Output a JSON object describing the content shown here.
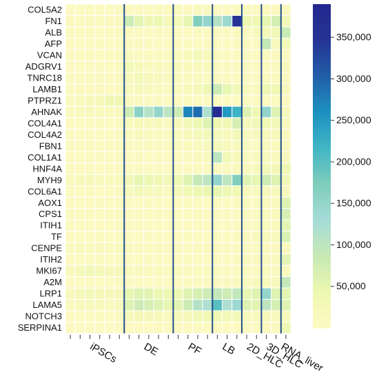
{
  "chart_data": {
    "type": "heatmap",
    "rows": [
      "COL5A2",
      "FN1",
      "ALB",
      "AFP",
      "VCAN",
      "ADGRV1",
      "TNRC18",
      "LAMB1",
      "PTPRZ1",
      "AHNAK",
      "COL4A1",
      "COL4A2",
      "FBN1",
      "COL1A1",
      "HNF4A",
      "MYH9",
      "COL6A1",
      "AOX1",
      "CPS1",
      "ITIH1",
      "TF",
      "CENPE",
      "ITIH2",
      "MKI67",
      "A2M",
      "LRP1",
      "LAMA5",
      "NOTCH3",
      "SERPINA1"
    ],
    "groups": [
      {
        "label": "iPSCs",
        "columns": 6
      },
      {
        "label": "DE",
        "columns": 5
      },
      {
        "label": "PF",
        "columns": 4
      },
      {
        "label": "LB",
        "columns": 3
      },
      {
        "label": "2D_HLC",
        "columns": 2
      },
      {
        "label": "3D_HLC",
        "columns": 2
      },
      {
        "label": "RNA_liver",
        "columns": 1
      }
    ],
    "values": [
      [
        3000,
        3000,
        4000,
        3000,
        3000,
        3000,
        5000,
        8000,
        6000,
        5000,
        4000,
        9000,
        7000,
        8000,
        10000,
        6000,
        5000,
        9000,
        4000,
        3000,
        6000,
        7000,
        14000
      ],
      [
        8000,
        9000,
        10000,
        9000,
        8000,
        9000,
        80000,
        55000,
        40000,
        45000,
        25000,
        25000,
        50000,
        170000,
        150000,
        110000,
        140000,
        350000,
        45000,
        35000,
        50000,
        70000,
        30000
      ],
      [
        5000,
        5000,
        6000,
        5000,
        5000,
        5000,
        9000,
        8000,
        7000,
        8000,
        6000,
        7000,
        6000,
        7000,
        8000,
        8000,
        9000,
        12000,
        10000,
        20000,
        25000,
        30000,
        85000
      ],
      [
        5000,
        5000,
        5000,
        5000,
        5000,
        5000,
        8000,
        7000,
        6000,
        7000,
        6000,
        7000,
        6000,
        6000,
        7000,
        7000,
        6000,
        8000,
        8000,
        10000,
        90000,
        15000,
        30000
      ],
      [
        4000,
        5000,
        5000,
        4000,
        4000,
        5000,
        12000,
        9000,
        8000,
        9000,
        7000,
        15000,
        20000,
        30000,
        20000,
        12000,
        10000,
        8000,
        5000,
        5000,
        6000,
        7000,
        10000
      ],
      [
        6000,
        5000,
        6000,
        5000,
        4000,
        5000,
        30000,
        20000,
        15000,
        12000,
        10000,
        15000,
        12000,
        14000,
        12000,
        10000,
        8000,
        9000,
        7000,
        6000,
        8000,
        9000,
        12000
      ],
      [
        8000,
        8000,
        9000,
        8000,
        8000,
        9000,
        20000,
        30000,
        25000,
        15000,
        12000,
        12000,
        10000,
        11000,
        9000,
        9000,
        8000,
        9000,
        8000,
        8000,
        9000,
        10000,
        12000
      ],
      [
        6000,
        7000,
        8000,
        7000,
        6000,
        7000,
        15000,
        22000,
        18000,
        15000,
        12000,
        15000,
        18000,
        25000,
        40000,
        80000,
        50000,
        30000,
        20000,
        15000,
        40000,
        35000,
        20000
      ],
      [
        10000,
        15000,
        20000,
        25000,
        40000,
        35000,
        10000,
        8000,
        7000,
        8000,
        6000,
        6000,
        5000,
        6000,
        7000,
        6000,
        5000,
        6000,
        5000,
        5000,
        6000,
        6000,
        10000
      ],
      [
        12000,
        15000,
        18000,
        15000,
        14000,
        15000,
        80000,
        160000,
        110000,
        150000,
        100000,
        80000,
        270000,
        290000,
        120000,
        380000,
        250000,
        220000,
        60000,
        40000,
        150000,
        60000,
        25000
      ],
      [
        5000,
        5000,
        6000,
        5000,
        5000,
        6000,
        15000,
        25000,
        20000,
        18000,
        12000,
        18000,
        30000,
        45000,
        60000,
        40000,
        35000,
        70000,
        25000,
        30000,
        35000,
        30000,
        20000
      ],
      [
        5000,
        5000,
        6000,
        5000,
        5000,
        5000,
        12000,
        18000,
        15000,
        12000,
        10000,
        12000,
        20000,
        25000,
        30000,
        25000,
        20000,
        30000,
        15000,
        18000,
        20000,
        18000,
        15000
      ],
      [
        5000,
        5000,
        5000,
        5000,
        5000,
        5000,
        8000,
        10000,
        9000,
        8000,
        7000,
        8000,
        12000,
        15000,
        20000,
        25000,
        20000,
        15000,
        10000,
        10000,
        12000,
        11000,
        15000
      ],
      [
        5000,
        5000,
        5000,
        5000,
        5000,
        5000,
        6000,
        7000,
        6000,
        6000,
        5000,
        7000,
        9000,
        12000,
        15000,
        100000,
        30000,
        25000,
        10000,
        12000,
        15000,
        13000,
        12000
      ],
      [
        4000,
        4000,
        4000,
        4000,
        4000,
        4000,
        6000,
        7000,
        6000,
        6000,
        5000,
        6000,
        6000,
        7000,
        8000,
        9000,
        10000,
        12000,
        15000,
        20000,
        30000,
        28000,
        40000
      ],
      [
        15000,
        18000,
        20000,
        17000,
        15000,
        16000,
        30000,
        50000,
        45000,
        35000,
        30000,
        40000,
        60000,
        90000,
        100000,
        150000,
        100000,
        170000,
        60000,
        50000,
        80000,
        60000,
        30000
      ],
      [
        6000,
        6000,
        7000,
        6000,
        6000,
        6000,
        20000,
        30000,
        25000,
        20000,
        15000,
        25000,
        35000,
        40000,
        45000,
        50000,
        40000,
        35000,
        20000,
        15000,
        18000,
        16000,
        20000
      ],
      [
        4000,
        4000,
        4000,
        4000,
        4000,
        4000,
        6000,
        6000,
        5000,
        6000,
        5000,
        6000,
        6000,
        6000,
        6000,
        6000,
        6000,
        7000,
        8000,
        10000,
        12000,
        14000,
        60000
      ],
      [
        4000,
        4000,
        4000,
        4000,
        4000,
        4000,
        5000,
        6000,
        5000,
        5000,
        5000,
        6000,
        6000,
        6000,
        6000,
        7000,
        7000,
        8000,
        8000,
        10000,
        12000,
        14000,
        70000
      ],
      [
        4000,
        4000,
        4000,
        4000,
        4000,
        4000,
        5000,
        5000,
        5000,
        5000,
        5000,
        5000,
        6000,
        6000,
        6000,
        6000,
        6000,
        7000,
        7000,
        9000,
        10000,
        11000,
        55000
      ],
      [
        4000,
        4000,
        4000,
        4000,
        4000,
        4000,
        5000,
        5000,
        5000,
        5000,
        5000,
        5000,
        6000,
        6000,
        6000,
        6000,
        6000,
        7000,
        8000,
        12000,
        15000,
        18000,
        65000
      ],
      [
        10000,
        12000,
        14000,
        12000,
        11000,
        12000,
        8000,
        9000,
        8000,
        8000,
        7000,
        7000,
        7000,
        8000,
        8000,
        7000,
        7000,
        7000,
        6000,
        6000,
        7000,
        7000,
        12000
      ],
      [
        4000,
        4000,
        4000,
        4000,
        4000,
        4000,
        5000,
        5000,
        5000,
        5000,
        5000,
        5000,
        6000,
        6000,
        6000,
        6000,
        6000,
        7000,
        7000,
        9000,
        10000,
        12000,
        55000
      ],
      [
        20000,
        25000,
        30000,
        26000,
        22000,
        24000,
        15000,
        14000,
        12000,
        12000,
        10000,
        10000,
        9000,
        10000,
        10000,
        9000,
        9000,
        9000,
        8000,
        8000,
        9000,
        9000,
        15000
      ],
      [
        4000,
        4000,
        4000,
        4000,
        4000,
        4000,
        5000,
        5000,
        5000,
        5000,
        5000,
        6000,
        6000,
        7000,
        8000,
        8000,
        8000,
        10000,
        10000,
        12000,
        14000,
        16000,
        90000
      ],
      [
        20000,
        25000,
        30000,
        25000,
        22000,
        24000,
        50000,
        60000,
        55000,
        45000,
        40000,
        45000,
        60000,
        70000,
        80000,
        90000,
        80000,
        95000,
        50000,
        60000,
        150000,
        60000,
        55000
      ],
      [
        15000,
        18000,
        20000,
        18000,
        16000,
        17000,
        60000,
        80000,
        70000,
        60000,
        50000,
        55000,
        80000,
        110000,
        120000,
        200000,
        120000,
        140000,
        60000,
        55000,
        100000,
        70000,
        60000
      ],
      [
        5000,
        6000,
        6000,
        5000,
        5000,
        6000,
        20000,
        25000,
        22000,
        18000,
        15000,
        20000,
        25000,
        30000,
        35000,
        35000,
        30000,
        30000,
        15000,
        15000,
        18000,
        16000,
        20000
      ],
      [
        3000,
        3000,
        3000,
        3000,
        3000,
        3000,
        4000,
        4000,
        4000,
        4000,
        4000,
        4000,
        4000,
        4000,
        4000,
        4000,
        4000,
        5000,
        5000,
        6000,
        7000,
        8000,
        45000
      ]
    ],
    "colorbar": {
      "min": 0,
      "max": 390000,
      "ticks": [
        50000,
        100000,
        150000,
        200000,
        250000,
        300000,
        350000
      ],
      "tick_labels": [
        "50,000",
        "100,000",
        "150,000",
        "200,000",
        "250,000",
        "300,000",
        "350,000"
      ],
      "colors": [
        "#fef9c3",
        "#edf8b1",
        "#c7e9b4",
        "#a6dcd8",
        "#7fcdbb",
        "#41b6c4",
        "#1d91c0",
        "#225ea8",
        "#253494",
        "#23288f"
      ]
    },
    "separator_color": "#1f4e8c",
    "grid": true,
    "legend": "right colorbar"
  }
}
